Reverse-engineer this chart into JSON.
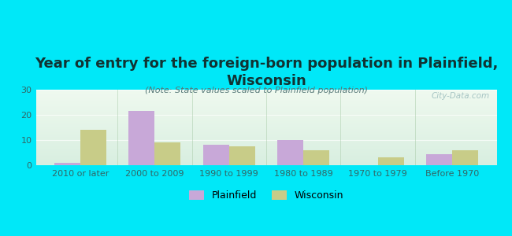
{
  "title": "Year of entry for the foreign-born population in Plainfield,\nWisconsin",
  "subtitle": "(Note: State values scaled to Plainfield population)",
  "categories": [
    "2010 or later",
    "2000 to 2009",
    "1990 to 1999",
    "1980 to 1989",
    "1970 to 1979",
    "Before 1970"
  ],
  "plainfield_values": [
    1,
    21.5,
    8,
    10,
    0,
    4.5
  ],
  "wisconsin_values": [
    14,
    9,
    7.5,
    6,
    3,
    6
  ],
  "plainfield_color": "#c8a8d8",
  "wisconsin_color": "#c8cc88",
  "background_color": "#00e8f8",
  "ylim": [
    0,
    30
  ],
  "yticks": [
    0,
    10,
    20,
    30
  ],
  "bar_width": 0.35,
  "legend_labels": [
    "Plainfield",
    "Wisconsin"
  ],
  "watermark": "City-Data.com",
  "title_fontsize": 13,
  "subtitle_fontsize": 8,
  "tick_fontsize": 8,
  "ytick_fontsize": 8
}
